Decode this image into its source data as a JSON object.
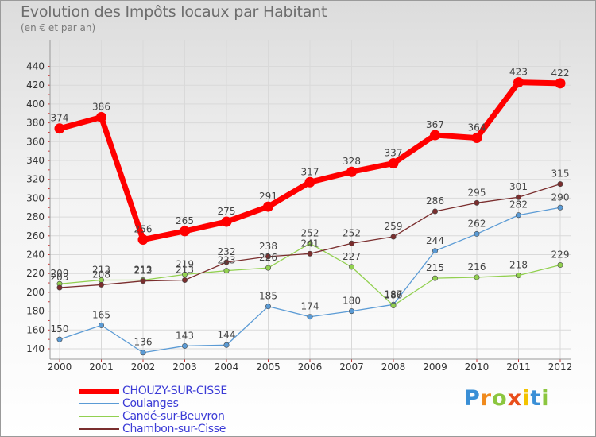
{
  "header": {
    "title": "Evolution des Impôts locaux par Habitant",
    "subtitle": "(en € et par an)"
  },
  "brand": {
    "letters": [
      "P",
      "r",
      "o",
      "x",
      "i",
      "t",
      "i"
    ],
    "colors": [
      "#3a8fd6",
      "#f08a1d",
      "#8cc63f",
      "#e94e1b",
      "#f3c300",
      "#3a8fd6",
      "#8cc63f"
    ]
  },
  "chart_data": {
    "type": "line",
    "title": "Evolution des Impôts locaux par Habitant",
    "subtitle": "(en € et par an)",
    "xlabel": "",
    "ylabel": "",
    "x": [
      "2000",
      "2001",
      "2002",
      "2003",
      "2004",
      "2005",
      "2006",
      "2007",
      "2008",
      "2009",
      "2010",
      "2011",
      "2012"
    ],
    "ylim": [
      130,
      450
    ],
    "yticks": [
      140,
      160,
      180,
      200,
      220,
      240,
      260,
      280,
      300,
      320,
      340,
      360,
      380,
      400,
      420,
      440
    ],
    "grid": true,
    "legend_position": "bottom-left",
    "series": [
      {
        "name": "CHOUZY-SUR-CISSE",
        "color": "#ff0000",
        "emphasis": true,
        "values": [
          374,
          386,
          256,
          265,
          275,
          291,
          317,
          328,
          337,
          367,
          364,
          423,
          422
        ]
      },
      {
        "name": "Coulanges",
        "color": "#5b9bd5",
        "emphasis": false,
        "values": [
          150,
          165,
          136,
          143,
          144,
          185,
          174,
          180,
          187,
          244,
          262,
          282,
          290
        ]
      },
      {
        "name": "Candé-sur-Beuvron",
        "color": "#92d050",
        "emphasis": false,
        "values": [
          209,
          213,
          213,
          219,
          223,
          226,
          252,
          227,
          186,
          215,
          216,
          218,
          229
        ]
      },
      {
        "name": "Chambon-sur-Cisse",
        "color": "#7a2e2e",
        "emphasis": false,
        "values": [
          205,
          208,
          212,
          213,
          232,
          238,
          241,
          252,
          259,
          286,
          295,
          301,
          315
        ]
      }
    ]
  }
}
